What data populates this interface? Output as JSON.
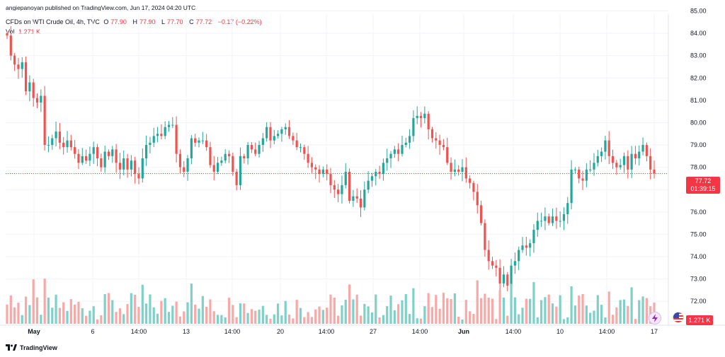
{
  "header": {
    "publisher": "angiepanoyan published on TradingView.com, Jun 17, 2024 04:20 UTC",
    "symbol": "CFDs on WTI Crude Oil, 4h, TVC",
    "o_label": "O",
    "o_value": "77.90",
    "h_label": "H",
    "h_value": "77.90",
    "l_label": "L",
    "l_value": "77.70",
    "c_label": "C",
    "c_value": "77.72",
    "change": "−0.17 (−0.22%)",
    "vol_label": "Vol",
    "vol_value": "1.271 K"
  },
  "badges": {
    "last_price": "77.72",
    "countdown": "01:39:15",
    "last_volume": "1.271 K"
  },
  "brand": {
    "name": "TradingView"
  },
  "colors": {
    "up": "#26a69a",
    "down": "#ef5350",
    "up_vol": "#7fd1c8",
    "down_vol": "#f7a9a7",
    "grid": "#f0f3fa",
    "axis_text": "#131722"
  },
  "icons": [
    "tradingview-logo-icon",
    "lightning-icon",
    "us-flag-icon"
  ],
  "chart_data": {
    "type": "candlestick",
    "title": "CFDs on WTI Crude Oil, 4h, TVC",
    "ylim": [
      71.5,
      85.3
    ],
    "y_ticks": [
      "85.00",
      "84.00",
      "83.00",
      "82.00",
      "81.00",
      "80.00",
      "79.00",
      "78.00",
      "77.00",
      "76.00",
      "75.00",
      "74.00",
      "73.00",
      "72.00"
    ],
    "x_ticks": [
      "May",
      "6",
      "14:00",
      "13",
      "14:00",
      "20",
      "14:00",
      "27",
      "14:00",
      "Jun",
      "14:00",
      "10",
      "14:00",
      "17"
    ],
    "last_price": 77.72,
    "series_closes": [
      83.9,
      83.0,
      82.6,
      82.4,
      82.7,
      81.4,
      81.8,
      81.1,
      80.9,
      81.2,
      79.0,
      79.0,
      79.3,
      79.6,
      79.1,
      78.9,
      79.2,
      78.9,
      78.6,
      78.2,
      78.5,
      78.3,
      78.6,
      78.9,
      78.4,
      78.0,
      78.7,
      78.5,
      78.8,
      78.2,
      77.9,
      78.4,
      77.9,
      78.3,
      77.7,
      77.5,
      78.4,
      79.0,
      79.1,
      79.4,
      79.5,
      79.4,
      79.8,
      79.9,
      79.9,
      78.6,
      78.0,
      77.8,
      78.4,
      79.3,
      79.1,
      79.2,
      79.2,
      78.9,
      78.1,
      77.8,
      78.2,
      78.3,
      78.6,
      78.5,
      77.8,
      77.2,
      78.5,
      78.4,
      79.0,
      78.8,
      78.6,
      79.0,
      79.3,
      79.8,
      79.2,
      79.4,
      79.5,
      79.7,
      79.8,
      79.4,
      79.2,
      78.9,
      78.9,
      78.6,
      78.2,
      78.0,
      77.9,
      77.7,
      77.9,
      77.7,
      77.2,
      77.0,
      76.8,
      77.2,
      77.8,
      76.5,
      76.7,
      76.6,
      76.2,
      77.0,
      77.4,
      77.6,
      77.8,
      77.7,
      78.2,
      78.4,
      78.6,
      78.8,
      78.6,
      79.0,
      79.1,
      79.4,
      80.2,
      80.3,
      80.2,
      80.4,
      79.7,
      79.3,
      79.2,
      79.0,
      78.9,
      78.2,
      77.8,
      77.9,
      77.8,
      78.0,
      77.5,
      77.3,
      76.9,
      76.3,
      75.5,
      74.3,
      73.8,
      73.6,
      73.5,
      72.8,
      73.2,
      72.7,
      73.6,
      73.8,
      74.3,
      74.5,
      74.4,
      74.6,
      75.2,
      75.6,
      75.6,
      75.8,
      75.5,
      75.8,
      75.6,
      75.6,
      75.9,
      76.4,
      77.9,
      77.9,
      77.5,
      77.4,
      77.9,
      77.9,
      78.2,
      78.5,
      78.7,
      79.2,
      78.5,
      78.2,
      78.0,
      78.1,
      78.5,
      77.9,
      78.6,
      78.4,
      78.7,
      79.0,
      78.5,
      77.9,
      77.72
    ],
    "volume_max_label": "1.271 K"
  }
}
